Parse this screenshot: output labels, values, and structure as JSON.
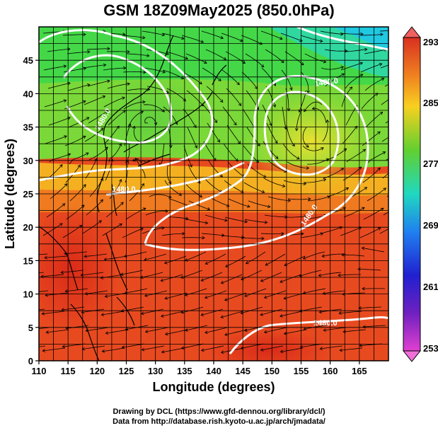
{
  "title": "GSM 18Z09May2025 (850.0hPa)",
  "axes": {
    "xlabel": "Longitude (degrees)",
    "ylabel": "Latitude  (degrees)",
    "xticks": [
      "110",
      "115",
      "120",
      "125",
      "130",
      "135",
      "140",
      "145",
      "150",
      "155",
      "160",
      "165"
    ],
    "yticks": [
      "0",
      "5",
      "10",
      "15",
      "20",
      "25",
      "30",
      "35",
      "40",
      "45"
    ]
  },
  "colorbar": {
    "labels": [
      "293",
      "285",
      "277",
      "269",
      "261",
      "253"
    ],
    "colors": [
      "#d83020",
      "#f08020",
      "#f8d020",
      "#60d030",
      "#20d8c0",
      "#2080f0",
      "#2020d0",
      "#7020c0",
      "#e040d0"
    ]
  },
  "contours": {
    "labels": [
      "1480.0",
      "1480.0",
      "1480.0",
      "1480.0",
      "1480.0"
    ]
  },
  "credits": {
    "line1": "Drawing by DCL (https://www.gfd-dennou.org/library/dcl/)",
    "line2": "Data from http://database.rish.kyoto-u.ac.jp/arch/jmadata/"
  },
  "chart_data": {
    "type": "heatmap",
    "title": "GSM 18Z09May2025 (850.0hPa)",
    "xlabel": "Longitude (degrees)",
    "ylabel": "Latitude  (degrees)",
    "xlim": [
      110,
      170
    ],
    "ylim": [
      0,
      50
    ],
    "colorbar_range": [
      253,
      293
    ],
    "colorbar_ticks": [
      293,
      285,
      277,
      269,
      261,
      253
    ],
    "contour_value": 1480.0,
    "grid": true
  }
}
